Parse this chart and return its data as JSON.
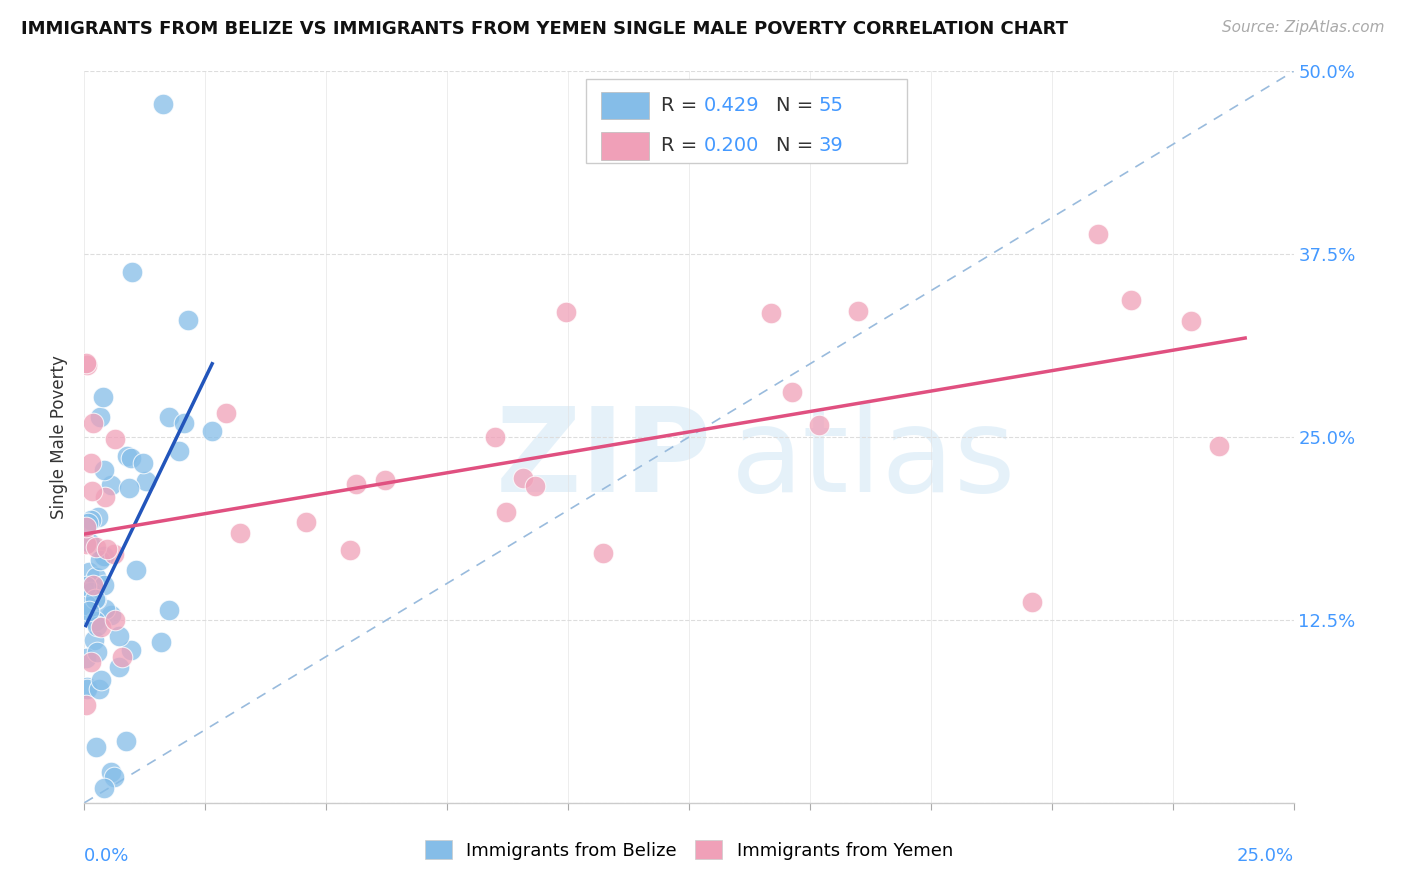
{
  "title": "IMMIGRANTS FROM BELIZE VS IMMIGRANTS FROM YEMEN SINGLE MALE POVERTY CORRELATION CHART",
  "source": "Source: ZipAtlas.com",
  "ylabel": "Single Male Poverty",
  "legend_label1": "Immigrants from Belize",
  "legend_label2": "Immigrants from Yemen",
  "color_belize": "#85bde8",
  "color_yemen": "#f0a0b8",
  "trendline_belize": "#2255bb",
  "trendline_yemen": "#e05080",
  "refline_color": "#99bbdd",
  "xmin": 0.0,
  "xmax": 0.25,
  "ymin": 0.0,
  "ymax": 0.5,
  "ytick_vals": [
    0.0,
    0.125,
    0.25,
    0.375,
    0.5
  ],
  "ytick_labels": [
    "",
    "12.5%",
    "25.0%",
    "37.5%",
    "50.0%"
  ],
  "R_belize": "0.429",
  "N_belize": "55",
  "R_yemen": "0.200",
  "N_yemen": "39",
  "legend_text_color": "#333333",
  "legend_val_color_belize": "#4499ff",
  "legend_val_color_yemen": "#4499ff",
  "title_fontsize": 13,
  "source_fontsize": 11,
  "tick_label_fontsize": 13,
  "ylabel_fontsize": 12,
  "watermark_zip_color": "#cce5f5",
  "watermark_atlas_color": "#cce5f5"
}
